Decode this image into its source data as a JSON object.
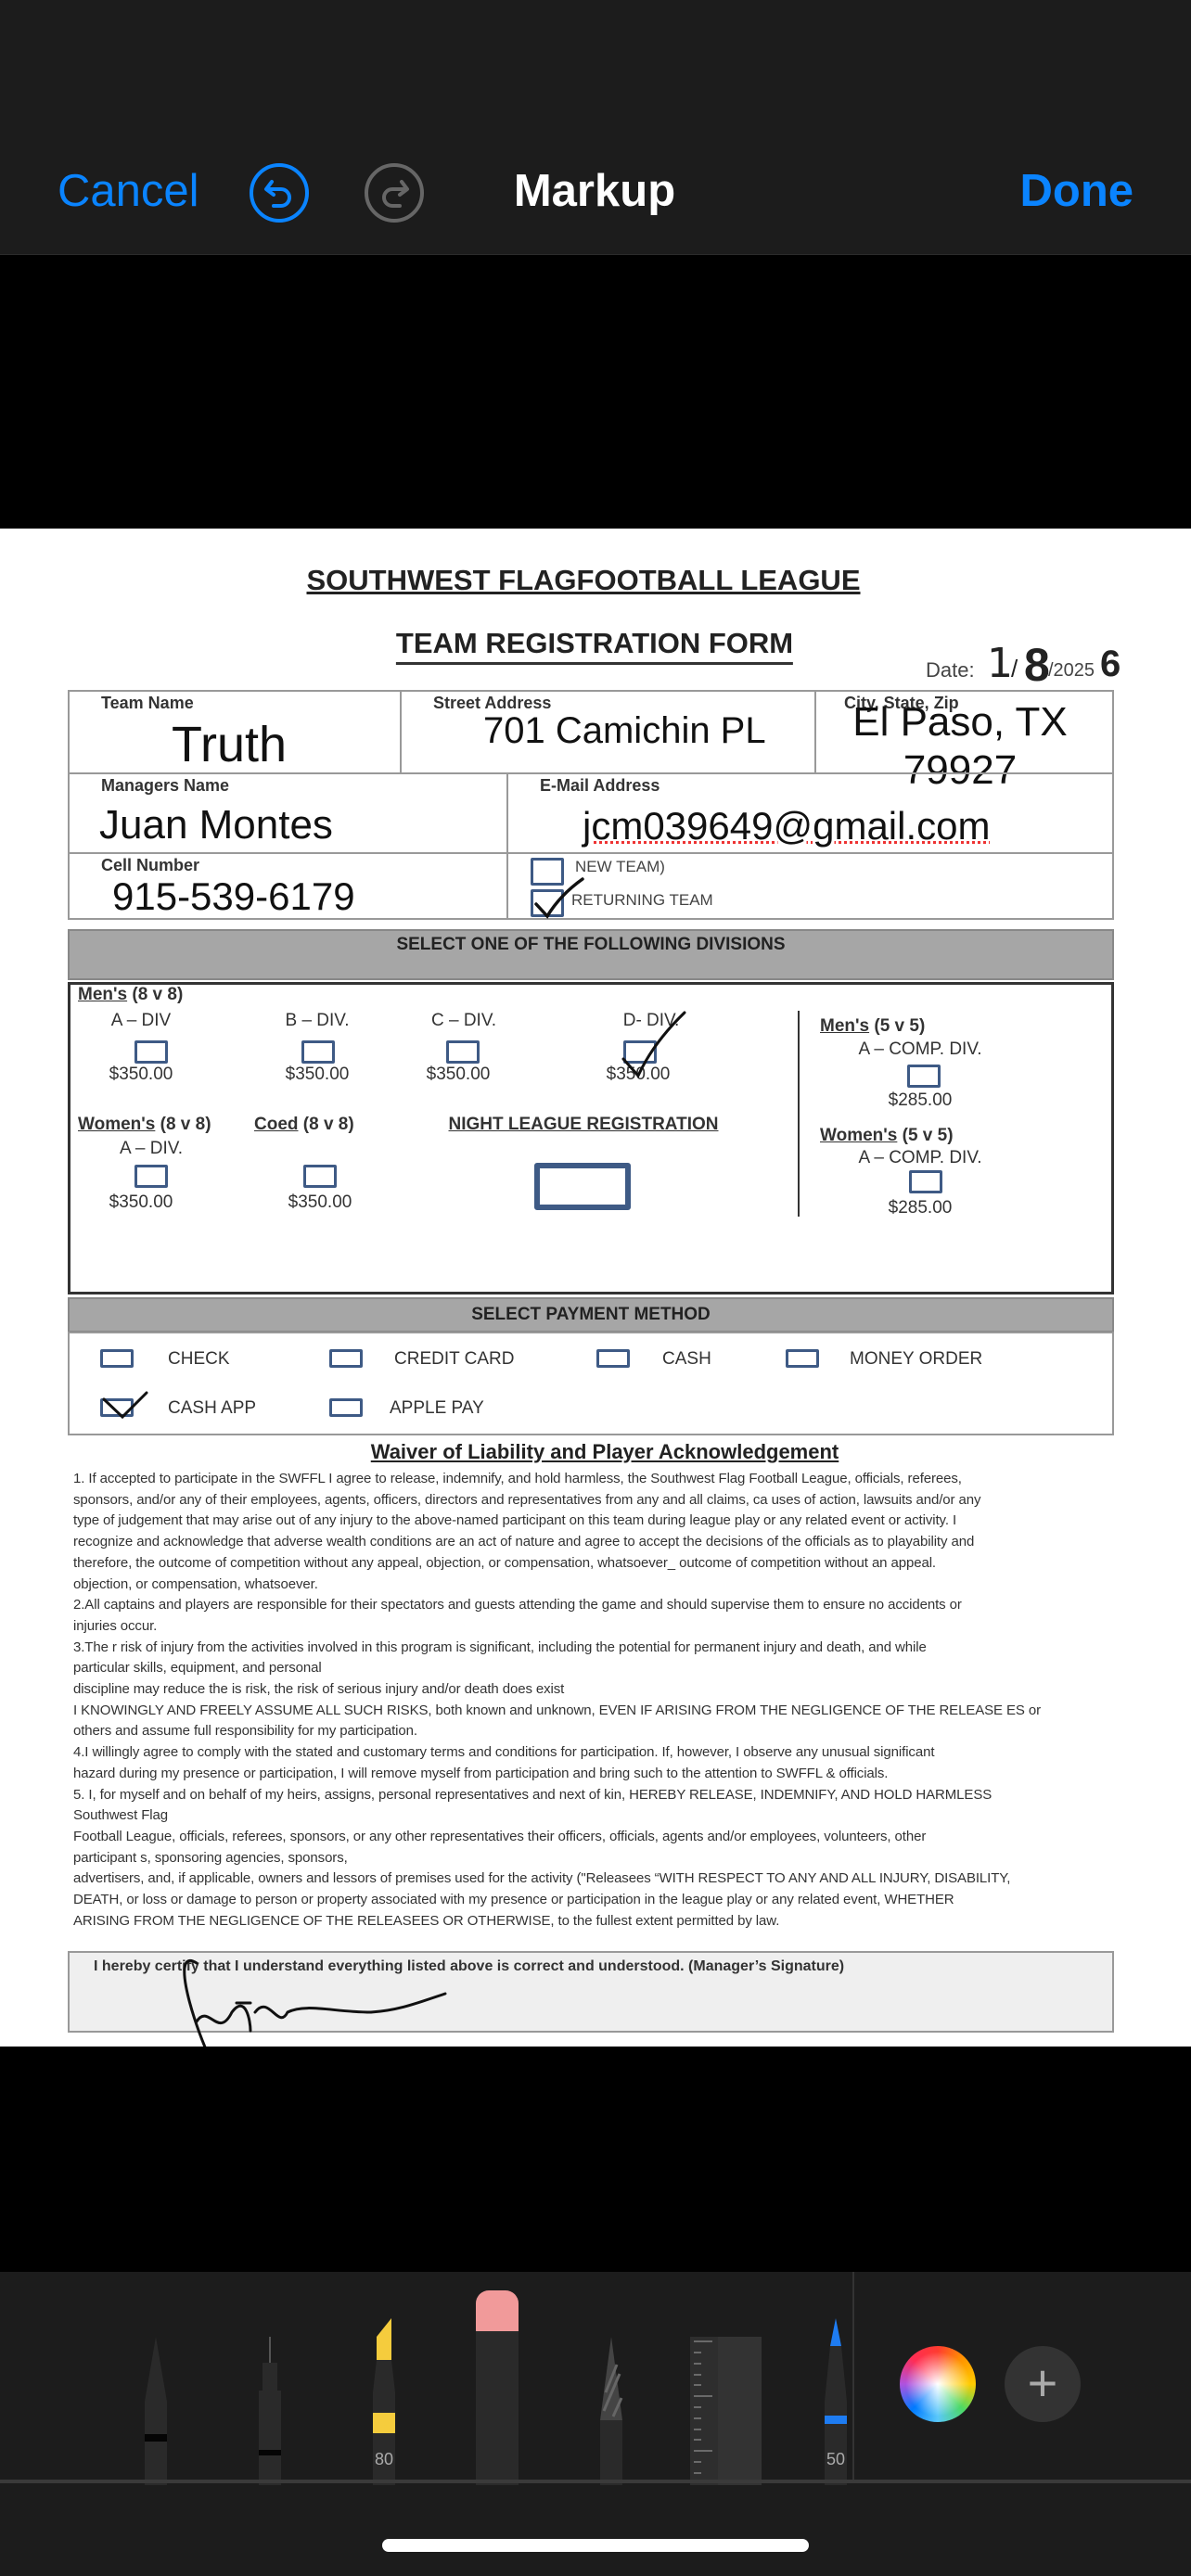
{
  "header": {
    "cancel": "Cancel",
    "title": "Markup",
    "done": "Done",
    "undo_icon": "undo-icon",
    "redo_icon": "redo-icon",
    "accent": "#0a84ff"
  },
  "form": {
    "title": "SOUTHWEST FLAGFOOTBALL LEAGUE",
    "subtitle": "TEAM REGISTRATION FORM",
    "date_label": "Date:",
    "date_printed": "/2025",
    "date_hand": {
      "month": "1",
      "sep": "/",
      "day": "8",
      "year_overwrite": "6"
    },
    "fields": {
      "team_name_label": "Team Name",
      "team_name": "Truth",
      "street_label": "Street Address",
      "street": "701 Camichin PL",
      "city_label": "City, State, Zip",
      "city": "El Paso, TX",
      "zip": "79927",
      "manager_label": "Managers Name",
      "manager": "Juan Montes",
      "email_label": "E-Mail Address",
      "email": "jcm039649@gmail.com",
      "cell_label": "Cell Number",
      "cell": "915-539-6179",
      "new_team": "NEW TEAM)",
      "returning_team": "RETURNING TEAM"
    },
    "team_status_checked": "returning_team",
    "divisions_header": "SELECT ONE OF THE FOLLOWING DIVISIONS",
    "divisions": {
      "mens8": {
        "heading": "Men's",
        "sub": " (8 v 8)",
        "a": "A – DIV",
        "b": "B – DIV.",
        "c": "C – DIV.",
        "d": "D- DIV.",
        "price": "$350.00"
      },
      "womens8": {
        "heading": "Women's",
        "sub": " (8 v 8)",
        "a": "A – DIV.",
        "price": "$350.00"
      },
      "coed8": {
        "heading": "Coed",
        "sub": " (8 v 8)",
        "price": "$350.00"
      },
      "night": "NIGHT LEAGUE REGISTRATION",
      "mens5": {
        "heading": "Men's",
        "sub": " (5 v 5)",
        "a": "A – COMP. DIV.",
        "price": "$285.00"
      },
      "womens5": {
        "heading": "Women's",
        "sub": " (5 v 5)",
        "a": "A – COMP. DIV.",
        "price": "$285.00"
      }
    },
    "division_checked": "D- DIV.",
    "payment_header": "SELECT PAYMENT METHOD",
    "payment": [
      "CHECK",
      "CREDIT CARD",
      "CASH",
      "MONEY ORDER",
      "CASH APP",
      "APPLE PAY"
    ],
    "payment_checked": "CASH APP",
    "waiver_title": "Waiver of Liability and Player Acknowledgement",
    "waiver_lines": [
      "1. If accepted to participate in the SWFFL I agree to release, indemnify, and hold harmless, the Southwest Flag Football League, officials, referees,",
      "sponsors, and/or any of their employees, agents, officers, directors and representatives from any and all claims, ca uses of action, lawsuits and/or any",
      "type of judgement that may arise out of any injury to the above-named participant on this team during league play or any related event or activity. I",
      "recognize and acknowledge that adverse wealth conditions are an act of nature and agree to accept the decisions of the officials as to playability and",
      "therefore, the outcome of competition without any appeal, objection, or compensation, whatsoever_ outcome of competition without an appeal.",
      "objection, or compensation, whatsoever.",
      "2.All captains and players are responsible for their spectators and guests attending the game and should supervise them to ensure no accidents or",
      "injuries occur.",
      "3.The r risk of injury from the activities involved in this program is significant, including the potential for permanent injury and death, and while",
      "particular skills, equipment, and personal",
      "discipline may reduce the is risk, the risk of serious injury and/or death does exist",
      "I KNOWINGLY AND FREELY ASSUME ALL SUCH RISKS, both known and unknown, EVEN IF ARISING FROM THE NEGLIGENCE OF THE RELEASE ES or",
      "others and assume full responsibility for my participation.",
      "4.I willingly agree to comply with the stated and customary terms and conditions for participation. If, however, I observe any unusual significant",
      "hazard during my presence or participation, I will remove myself from participation and bring such to the attention to SWFFL & officials.",
      "5. I, for myself and on behalf of my heirs, assigns, personal representatives and next of kin, HEREBY RELEASE, INDEMNIFY, AND HOLD HARMLESS",
      "Southwest Flag",
      "Football League, officials, referees, sponsors, or any other representatives their officers, officials, agents and/or employees, volunteers, other",
      "participant s, sponsoring agencies, sponsors,",
      "advertisers, and, if applicable, owners and lessors of premises used for the activity (\"Releasees “WITH RESPECT TO ANY AND ALL INJURY, DISABILITY,",
      "DEATH, or loss or damage to person or property associated with my presence or participation in the league play or any related event, WHETHER",
      "ARISING FROM THE NEGLIGENCE OF THE RELEASEES OR OTHERWISE, to the fullest extent permitted by law."
    ],
    "signature_statement": "I hereby certify that I understand everything listed above is correct and understood. (Manager’s Signature)"
  },
  "toolbar": {
    "tools": [
      {
        "name": "pen"
      },
      {
        "name": "fineliner"
      },
      {
        "name": "highlighter",
        "opacity": "80",
        "color": "#f5cc3d"
      },
      {
        "name": "eraser",
        "color": "#f19a9a"
      },
      {
        "name": "pencil"
      },
      {
        "name": "ruler"
      },
      {
        "name": "marker",
        "opacity": "50",
        "color": "#1e7cf2"
      }
    ],
    "color_picker": "color-wheel-icon",
    "add": "plus-icon"
  }
}
